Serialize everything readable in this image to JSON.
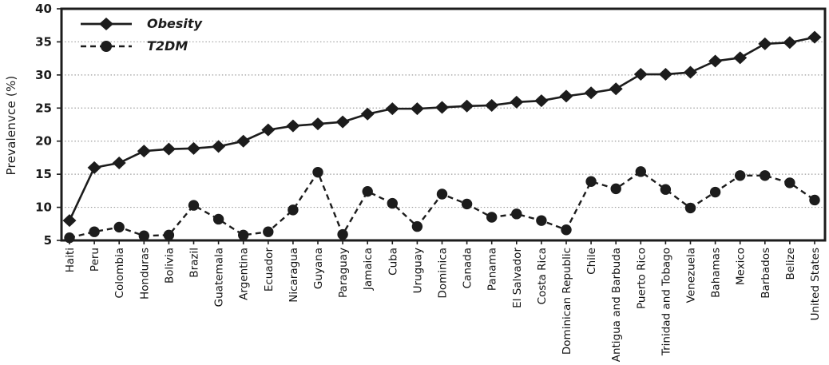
{
  "figure": {
    "background_color": "#ffffff",
    "series_color": "#1c1c1c",
    "gridline_color": "#9e9e9e",
    "legend": {
      "position": "top-left inset",
      "items": [
        {
          "label": "Obesity",
          "marker": "diamond-icon",
          "line_style": "solid"
        },
        {
          "label": "T2DM",
          "marker": "circle-icon",
          "line_style": "dashed"
        }
      ]
    }
  },
  "chart_data": {
    "type": "line",
    "title": "",
    "xlabel": "",
    "ylabel": "Prevalenvce (%)",
    "ylim": [
      5,
      40
    ],
    "yticks": [
      5,
      10,
      15,
      20,
      25,
      30,
      35,
      40
    ],
    "grid": "horizontal dotted",
    "legend_position": "top-left",
    "categories": [
      "Haiti",
      "Peru",
      "Colombia",
      "Honduras",
      "Bolivia",
      "Brazil",
      "Guatemala",
      "Argentina",
      "Ecuador",
      "Nicaragua",
      "Guyana",
      "Paraguay",
      "Jamaica",
      "Cuba",
      "Uruguay",
      "Dominica",
      "Canada",
      "Panama",
      "El Salvador",
      "Costa Rica",
      "Dominican Republic",
      "Chile",
      "Antigua and Barbuda",
      "Puerto Rico",
      "Trinidad and Tobago",
      "Venezuela",
      "Bahamas",
      "Mexico",
      "Barbados",
      "Belize",
      "United States"
    ],
    "series": [
      {
        "name": "Obesity",
        "marker": "diamond",
        "line_style": "solid",
        "values": [
          8.0,
          16.0,
          16.7,
          18.5,
          18.8,
          18.9,
          19.2,
          20.0,
          21.7,
          22.3,
          22.6,
          22.9,
          24.1,
          24.9,
          24.9,
          25.1,
          25.3,
          25.4,
          25.9,
          26.1,
          26.8,
          27.3,
          27.9,
          30.1,
          30.1,
          30.4,
          32.1,
          32.6,
          34.7,
          34.9,
          35.7
        ]
      },
      {
        "name": "T2DM",
        "marker": "circle",
        "line_style": "dashed",
        "values": [
          5.4,
          6.3,
          7.0,
          5.7,
          5.8,
          10.3,
          8.2,
          5.8,
          6.3,
          9.6,
          15.3,
          5.9,
          12.4,
          10.6,
          7.1,
          12.0,
          10.5,
          8.5,
          9.0,
          8.0,
          6.6,
          13.9,
          12.8,
          15.4,
          12.7,
          9.9,
          12.3,
          14.8,
          14.8,
          13.7,
          11.1
        ]
      }
    ]
  }
}
